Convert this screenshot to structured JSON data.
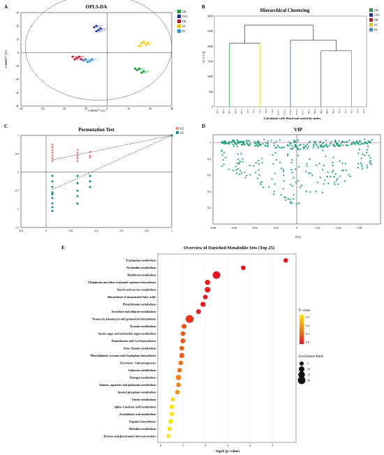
{
  "panels": {
    "A": {
      "letter": "A",
      "title": "OPLS-DA",
      "xlabel": "1.00000 * t[1]",
      "ylabel": "1.00000 * t[2]"
    },
    "B": {
      "letter": "B",
      "title": "Hierarchical Clustering",
      "xlabel": "Calculated with Ward and sorted by index.",
      "ylabel": "t[1 2 3 4]"
    },
    "C": {
      "letter": "C",
      "title": "Permutation Test"
    },
    "D": {
      "letter": "D",
      "title": "VIP",
      "xlabel": "P[1]"
    },
    "E": {
      "letter": "E",
      "title": "Overview of Enriched Metabolite Sets (Top 25)",
      "xlabel": "−log10 (p−value)"
    }
  },
  "groups": [
    {
      "name": "QD",
      "color": "#1a9e3a"
    },
    {
      "name": "LYG",
      "color": "#1f2f9e"
    },
    {
      "name": "NB",
      "color": "#c8102e"
    },
    {
      "name": "ST",
      "color": "#f2c200"
    },
    {
      "name": "PZ",
      "color": "#2f8fd6"
    }
  ],
  "chart_data": [
    {
      "type": "scatter",
      "title": "OPLS-DA",
      "xlabel": "1.00000 * t[1]",
      "ylabel": "1.00000 * t[2]",
      "xlim": [
        -40,
        30
      ],
      "ylim": [
        -40,
        30
      ],
      "xticks": [
        -40,
        -30,
        -20,
        -10,
        0,
        10,
        20,
        30
      ],
      "yticks": [
        -40,
        -30,
        -20,
        -10,
        0,
        10,
        20,
        30
      ],
      "series": [
        {
          "name": "QD",
          "points": [
            [
              13,
              -12
            ],
            [
              15,
              -12
            ],
            [
              17,
              -14
            ],
            [
              16,
              -15
            ],
            [
              14,
              -13
            ]
          ],
          "labels": [
            "QD-1",
            "QD-2",
            "QD-3",
            "QD-4",
            "QD-5"
          ]
        },
        {
          "name": "LYG",
          "points": [
            [
              -6,
              19
            ],
            [
              -3,
              18
            ],
            [
              -5,
              16
            ],
            [
              -4,
              17
            ],
            [
              -5,
              20
            ]
          ],
          "labels": [
            "LYG-1",
            "LYG-2",
            "LYG-3",
            "LYG-4",
            "LYG-5"
          ]
        },
        {
          "name": "NB",
          "points": [
            [
              -16,
              -3
            ],
            [
              -14,
              -4
            ],
            [
              -12,
              -5
            ],
            [
              -15,
              -5
            ],
            [
              -13,
              -3
            ]
          ],
          "labels": [
            "NB-1",
            "NB-2",
            "NB-3",
            "NB-4",
            "NB-5"
          ]
        },
        {
          "name": "ST",
          "points": [
            [
              16,
              7
            ],
            [
              18,
              6
            ],
            [
              17,
              8
            ],
            [
              15,
              5
            ],
            [
              19,
              7
            ]
          ],
          "labels": [
            "ST-1",
            "ST-2",
            "ST-3",
            "ST-4",
            "ST-5"
          ]
        },
        {
          "name": "PZ",
          "points": [
            [
              -10,
              -5
            ],
            [
              -8,
              -6
            ],
            [
              -9,
              -7
            ],
            [
              -7,
              -5
            ],
            [
              -11,
              -6
            ]
          ],
          "labels": [
            "PZ-1",
            "PZ-2",
            "PZ-3",
            "PZ-4",
            "PZ-5"
          ]
        }
      ]
    },
    {
      "type": "dendrogram",
      "title": "Hierarchical Clustering",
      "xlabel": "Calculated with Ward and sorted by index.",
      "ylabel": "t[1 2 3 4]",
      "ylim": [
        0,
        3000
      ],
      "yticks": [
        0,
        500,
        1000,
        1500,
        2000,
        2500,
        3000
      ],
      "leaves": [
        "QD-1",
        "QD-2",
        "QD-3",
        "QD-4",
        "QD-5",
        "ST-1",
        "ST-2",
        "ST-3",
        "ST-4",
        "ST-5",
        "LYG-1",
        "LYG-2",
        "LYG-3",
        "LYG-4",
        "LYG-5",
        "NB-1",
        "NB-2",
        "NB-3",
        "NB-4",
        "NB-5",
        "PZ-1",
        "PZ-2",
        "PZ-3",
        "PZ-4",
        "PZ-5"
      ],
      "merges": [
        {
          "left": "QD",
          "right": "ST",
          "height": 2100
        },
        {
          "left": "NB",
          "right": "PZ",
          "height": 1850
        },
        {
          "left": "LYG",
          "right": "NB+PZ",
          "height": 2200
        },
        {
          "left": "QD+ST",
          "right": "LYG+NB+PZ",
          "height": 2700
        }
      ]
    },
    {
      "type": "scatter",
      "title": "Permutation Test",
      "xlim": [
        -0.2,
        1
      ],
      "ylim": [
        -1.5,
        1
      ],
      "xticks": [
        -0.2,
        0,
        0.2,
        0.4,
        0.6,
        0.8,
        1
      ],
      "yticks": [
        -1.5,
        -1,
        -0.5,
        0,
        0.5,
        1
      ],
      "series": [
        {
          "name": "R2",
          "x": [
            0.05,
            0.05,
            0.05,
            0.05,
            0.05,
            0.05,
            0.05,
            0.25,
            0.25,
            0.25,
            0.25,
            0.25,
            0.35,
            0.35,
            0.35,
            1.0
          ],
          "y": [
            0.75,
            0.68,
            0.6,
            0.53,
            0.45,
            0.38,
            0.3,
            0.6,
            0.52,
            0.45,
            0.38,
            0.3,
            0.55,
            0.45,
            0.4,
            1.0
          ]
        },
        {
          "name": "Q2",
          "x": [
            0.05,
            0.05,
            0.05,
            0.05,
            0.05,
            0.05,
            0.05,
            0.05,
            0.05,
            0.25,
            0.25,
            0.25,
            0.25,
            0.25,
            0.35,
            0.35,
            0.35,
            1.0
          ],
          "y": [
            -0.1,
            -0.25,
            -0.4,
            -0.55,
            -0.7,
            -0.85,
            -0.95,
            -1.05,
            -0.6,
            -0.1,
            -0.3,
            -0.5,
            -0.65,
            -0.85,
            -0.1,
            -0.25,
            -0.4,
            1.0
          ]
        }
      ],
      "regression": [
        {
          "name": "R2",
          "intercept": 0.3,
          "slope": 0.7
        },
        {
          "name": "Q2",
          "intercept": -0.55,
          "slope": 1.55
        }
      ]
    },
    {
      "type": "scatter",
      "title": "VIP",
      "xlabel": "P[1]",
      "xlim": [
        -0.08,
        0.08
      ],
      "ylim": [
        0,
        1.1
      ],
      "xticks": [
        -0.08,
        -0.06,
        -0.04,
        -0.02,
        0,
        0.02,
        0.04,
        0.06
      ],
      "yticks": [
        0.2,
        0.4,
        0.6,
        0.8,
        1
      ],
      "threshold": 1,
      "point_count": 420
    },
    {
      "type": "scatter",
      "title": "Overview of Enriched Metabolite Sets (Top 25)",
      "xlabel": "−log10 (p−value)",
      "xlim": [
        0,
        6
      ],
      "xticks": [
        0,
        1,
        2,
        3,
        4,
        5
      ],
      "categories": [
        "Tryptophan metabolism",
        "Pyrimidine metabolism",
        "Riboflavin metabolism",
        "Ubiquinone and other terpenoid−quinone biosynthesis",
        "Starch and sucrose metabolism",
        "Biosynthesis of unsaturated fatty acids",
        "Phenylalanine metabolism",
        "Ascorbate and aldarate metabolism",
        "Neomycin, kanamycin and gentamicin biosynthesis",
        "Tyrosine metabolism",
        "Amino sugar and nucleotide sugar metabolism",
        "Pantothenate and CoA biosynthesis",
        "beta−Alanine metabolism",
        "Phenylalanine, tyrosine and tryptophan biosynthesis",
        "Glycolysis / Gluconeogenesis",
        "Galactose metabolism",
        "Nitrogen metabolism",
        "Alanine, aspartate and glutamate metabolism",
        "Inositol phosphate metabolism",
        "Purine metabolism",
        "alpha−Linolenic acid metabolism",
        "Arachidonic acid metabolism",
        "Arginine biosynthesis",
        "Histidine metabolism",
        "Pentose and glucuronate interconversions"
      ],
      "x": [
        5.6,
        3.7,
        2.5,
        2.1,
        2.1,
        2.0,
        1.9,
        1.7,
        1.3,
        1.05,
        1.0,
        1.0,
        0.95,
        0.95,
        0.9,
        0.85,
        0.8,
        0.8,
        0.75,
        0.55,
        0.5,
        0.5,
        0.45,
        0.4,
        0.35
      ],
      "p_value": [
        0.0,
        0.0,
        0.003,
        0.008,
        0.008,
        0.01,
        0.013,
        0.02,
        0.05,
        0.09,
        0.1,
        0.1,
        0.11,
        0.11,
        0.13,
        0.14,
        0.16,
        0.16,
        0.18,
        0.28,
        0.3,
        0.3,
        0.33,
        0.36,
        0.4
      ],
      "enrichment_ratio": [
        6,
        6,
        20,
        8,
        10,
        6,
        8,
        7,
        22,
        7,
        6,
        7,
        6,
        8,
        6,
        6,
        9,
        6,
        6,
        4,
        6,
        5,
        6,
        5,
        4
      ],
      "legend": {
        "color_title": "P−value",
        "color_ticks": [
          "0.3",
          "0.2",
          "0.1",
          "0.0"
        ],
        "size_title": "Enrichment Ratio",
        "size_values": [
          5,
          10,
          15,
          20
        ],
        "color_range": [
          "#ffe400",
          "#e8101c"
        ]
      }
    }
  ]
}
